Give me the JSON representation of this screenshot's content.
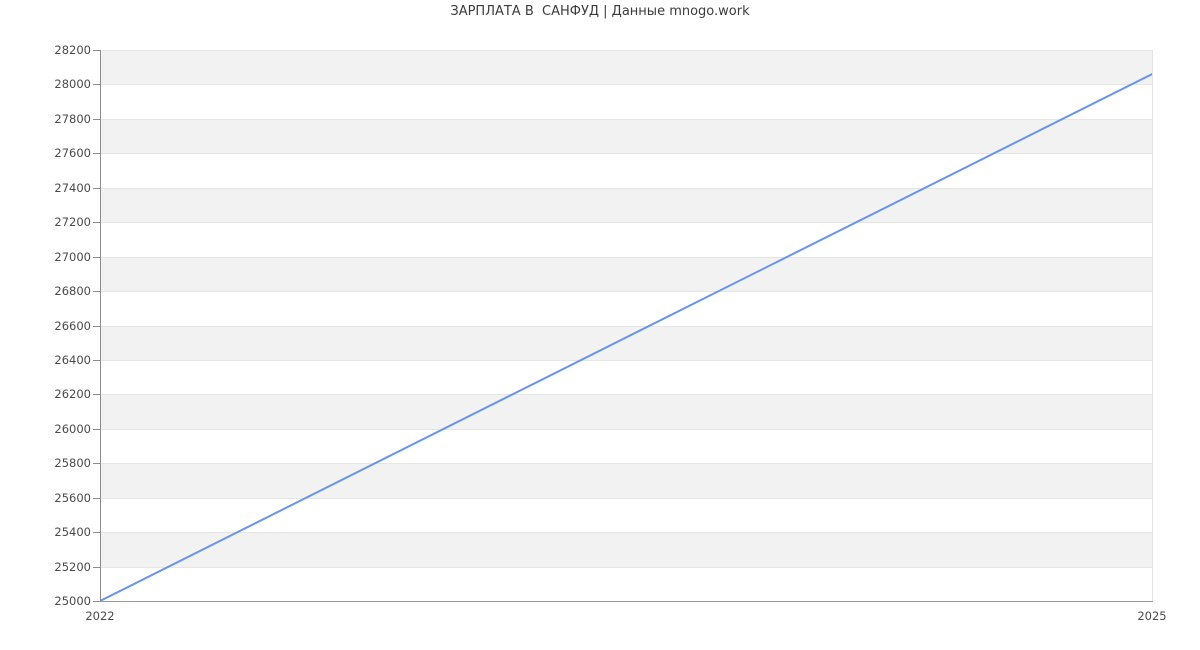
{
  "chart_data": {
    "type": "line",
    "title": "ЗАРПЛАТА В  САНФУД | Данные mnogo.work",
    "xlabel": "",
    "ylabel": "",
    "xlim": [
      2022,
      2025
    ],
    "ylim": [
      25000,
      28200
    ],
    "x_ticks": [
      {
        "value": 2022,
        "label": "2022"
      },
      {
        "value": 2025,
        "label": "2025"
      }
    ],
    "y_ticks": [
      25000,
      25200,
      25400,
      25600,
      25800,
      26000,
      26200,
      26400,
      26600,
      26800,
      27000,
      27200,
      27400,
      27600,
      27800,
      28000,
      28200
    ],
    "grid": "horizontal",
    "legend": "none",
    "plot_bands": "alternating horizontal stripes between y gridlines, gray topmost",
    "series": [
      {
        "color": "#6994eb",
        "stroke_width": 2,
        "shape": "linear",
        "points": [
          [
            2022,
            25000
          ],
          [
            2025,
            28060
          ]
        ]
      }
    ],
    "colors": {
      "background": "#ffffff",
      "band": "#f2f2f2",
      "gridline": "#e6e6e6",
      "axis": "#8c8c8c",
      "tick_label": "#4a4a4a",
      "title": "#3c3c3c"
    }
  }
}
